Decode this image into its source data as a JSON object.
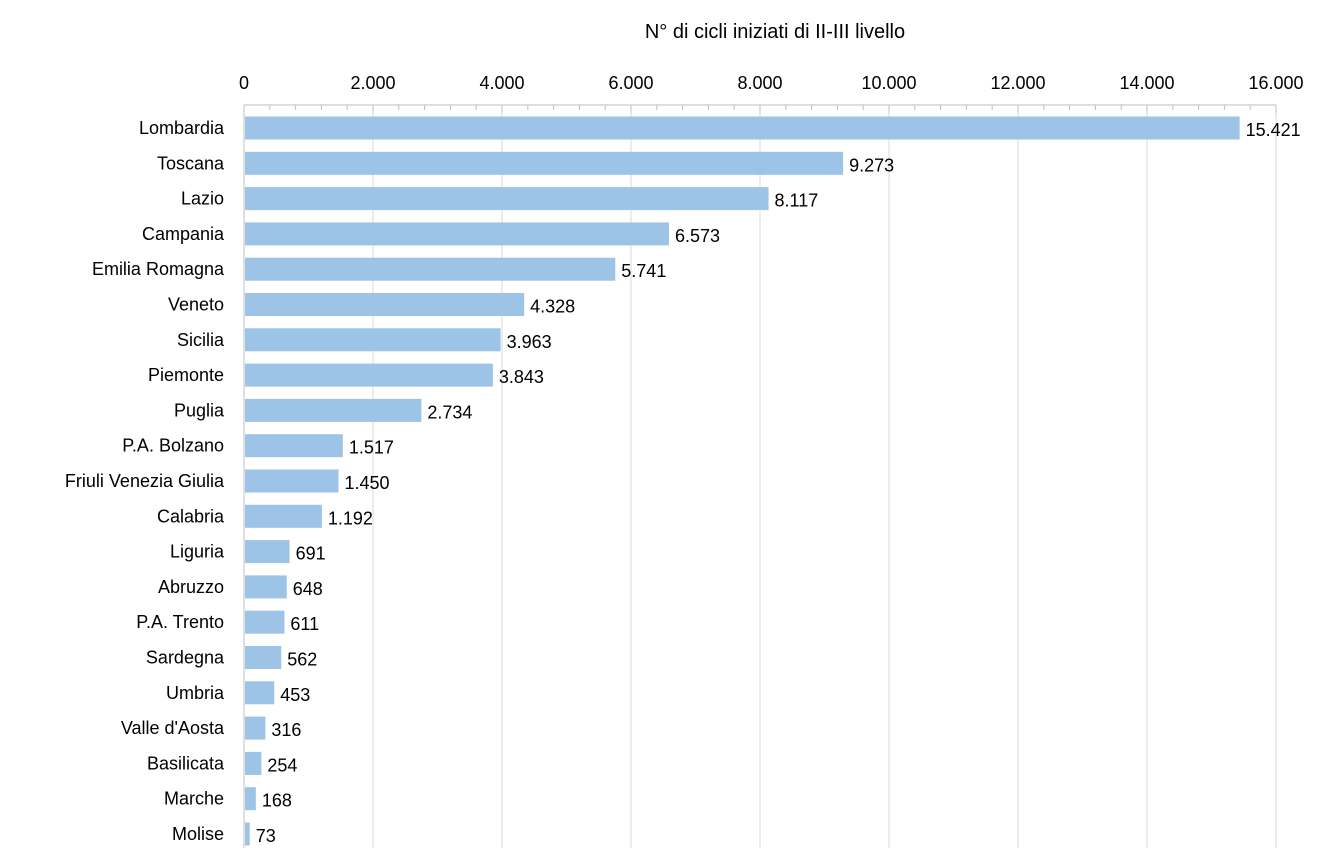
{
  "chart_data": {
    "type": "bar",
    "orientation": "horizontal",
    "title": "N° di cicli iniziati di II-III livello",
    "xlabel": "",
    "ylabel": "",
    "xlim": [
      0,
      16000
    ],
    "x_ticks": [
      "0",
      "2.000",
      "4.000",
      "6.000",
      "8.000",
      "10.000",
      "12.000",
      "14.000",
      "16.000"
    ],
    "x_tick_values": [
      0,
      2000,
      4000,
      6000,
      8000,
      10000,
      12000,
      14000,
      16000
    ],
    "x_axis_position": "top",
    "grid": true,
    "legend": "none",
    "bar_color": "#9dc3e6",
    "categories": [
      "Lombardia",
      "Toscana",
      "Lazio",
      "Campania",
      "Emilia Romagna",
      "Veneto",
      "Sicilia",
      "Piemonte",
      "Puglia",
      "P.A. Bolzano",
      "Friuli Venezia Giulia",
      "Calabria",
      "Liguria",
      "Abruzzo",
      "P.A. Trento",
      "Sardegna",
      "Umbria",
      "Valle d'Aosta",
      "Basilicata",
      "Marche",
      "Molise"
    ],
    "values": [
      15421,
      9273,
      8117,
      6573,
      5741,
      4328,
      3963,
      3843,
      2734,
      1517,
      1450,
      1192,
      691,
      648,
      611,
      562,
      453,
      316,
      254,
      168,
      73
    ],
    "value_labels": [
      "15.421",
      "9.273",
      "8.117",
      "6.573",
      "5.741",
      "4.328",
      "3.963",
      "3.843",
      "2.734",
      "1.517",
      "1.450",
      "1.192",
      "691",
      "648",
      "611",
      "562",
      "453",
      "316",
      "254",
      "168",
      "73"
    ]
  }
}
